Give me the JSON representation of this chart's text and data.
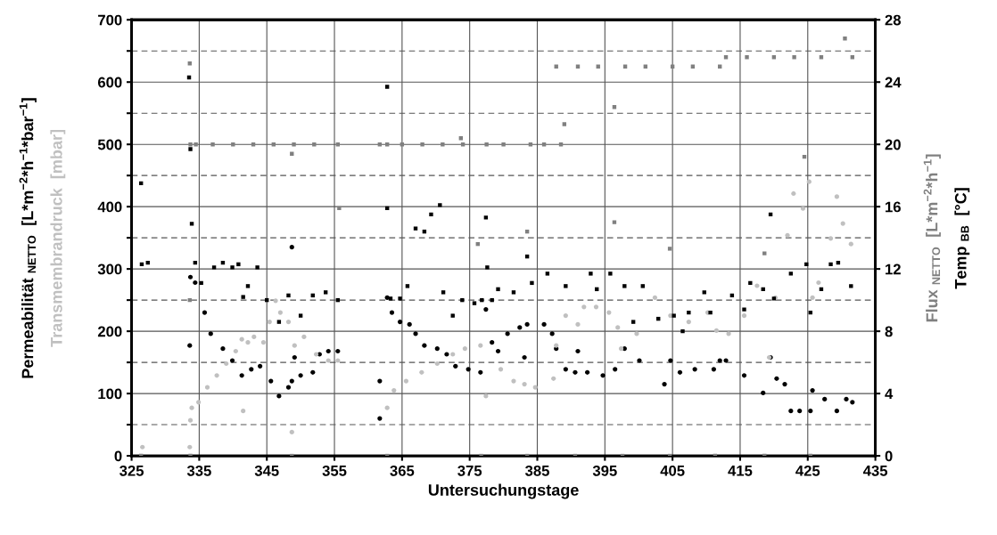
{
  "chart_data": {
    "type": "scatter",
    "xlabel": "Untersuchungstage",
    "ylabel": [
      "Permeabilität $_{NETTO}$  [L*m$^{−2}$*h$^{−1}$*bar$^{−1}$]",
      "Transmembrandruck  [mbar]"
    ],
    "y2label": [
      "Flux $_{NETTO}$  [L*m$^{−2}$*h$^{−1}$]",
      "Temp $_{BB}$  [°C]"
    ],
    "xlim": [
      325,
      435
    ],
    "xticks": [
      325,
      335,
      345,
      355,
      365,
      375,
      385,
      395,
      405,
      415,
      425,
      435
    ],
    "ylim": [
      0,
      700
    ],
    "yticks": [
      0,
      {
        "value": 50,
        "label": null
      },
      100,
      {
        "value": 150,
        "label": null
      },
      200,
      {
        "value": 250,
        "label": null
      },
      300,
      {
        "value": 350,
        "label": null
      },
      400,
      {
        "value": 450,
        "label": null
      },
      500,
      {
        "value": 550,
        "label": null
      },
      600,
      {
        "value": 650,
        "label": null
      },
      700
    ],
    "y2lim": [
      0,
      28
    ],
    "y2ticks": [
      0,
      4,
      8,
      12,
      16,
      20,
      24,
      28
    ],
    "grid": true,
    "legend": false,
    "series": [
      {
        "color": "#000000",
        "marker": "circle",
        "x": [
          333.6,
          333.7,
          334.4,
          335.8,
          336.7,
          338.5,
          339.9,
          341.3,
          342.7,
          344.0,
          345.6,
          346.8,
          348.2,
          348.7,
          348.7,
          349.1,
          350.0,
          351.8,
          352.8,
          354.1,
          355.5,
          361.7,
          361.7,
          362.8,
          363.5,
          364.7,
          366.1,
          367.0,
          368.3,
          370.2,
          371.6,
          372.9,
          374.8,
          376.6,
          377.4,
          378.3,
          379.2,
          380.6,
          382.4,
          383.1,
          383.5,
          386.0,
          387.2,
          387.8,
          389.2,
          390.6,
          391.0,
          392.4,
          394.7,
          396.5,
          397.9,
          400.1,
          403.8,
          404.7,
          406.1,
          408.3,
          411.1,
          412.0,
          412.9,
          415.6,
          418.4,
          419.5,
          420.4,
          421.6,
          422.5,
          423.8,
          425.4,
          425.7,
          427.5,
          429.3,
          430.7,
          431.6
        ],
        "values": [
          177,
          287,
          278,
          230,
          196,
          172,
          153,
          129,
          139,
          144,
          120,
          96,
          110,
          120,
          335,
          158,
          129,
          134,
          163,
          168,
          168,
          60,
          120,
          254,
          230,
          215,
          211,
          196,
          177,
          172,
          163,
          144,
          139,
          134,
          235,
          182,
          168,
          196,
          206,
          158,
          211,
          211,
          196,
          172,
          139,
          134,
          168,
          134,
          129,
          139,
          172,
          153,
          115,
          153,
          134,
          139,
          139,
          153,
          153,
          129,
          101,
          158,
          124,
          115,
          72,
          72,
          72,
          105,
          91,
          72,
          91,
          86
        ]
      },
      {
        "color": "#c0c0c0",
        "marker": "circle",
        "x": [
          326.6,
          333.6,
          333.7,
          333.9,
          334.9,
          336.2,
          337.6,
          339.0,
          340.4,
          341.3,
          341.5,
          342.2,
          343.1,
          344.5,
          345.4,
          346.3,
          347.0,
          348.2,
          348.7,
          349.1,
          350.5,
          352.3,
          354.1,
          355.5,
          362.8,
          363.8,
          365.6,
          367.9,
          370.2,
          372.5,
          374.3,
          376.6,
          377.4,
          379.6,
          381.5,
          383.1,
          384.7,
          387.4,
          387.8,
          389.2,
          391.0,
          391.9,
          393.7,
          395.6,
          396.9,
          397.4,
          399.7,
          402.4,
          404.7,
          407.4,
          410.2,
          411.5,
          413.3,
          415.6,
          417.5,
          419.3,
          420.2,
          422.0,
          422.9,
          424.3,
          425.2,
          425.7,
          426.6,
          428.4,
          429.3,
          430.2,
          431.4
        ],
        "values": [
          14,
          14,
          57,
          77,
          86,
          110,
          129,
          148,
          168,
          187,
          72,
          182,
          191,
          182,
          215,
          249,
          230,
          215,
          38,
          177,
          191,
          163,
          153,
          153,
          77,
          105,
          120,
          134,
          148,
          163,
          172,
          177,
          96,
          139,
          120,
          115,
          110,
          124,
          177,
          225,
          211,
          239,
          239,
          230,
          206,
          172,
          196,
          254,
          225,
          215,
          230,
          201,
          196,
          225,
          273,
          158,
          254,
          354,
          421,
          397,
          440,
          254,
          278,
          349,
          416,
          373,
          340
        ]
      },
      {
        "color": "#808080",
        "marker": "square",
        "axis": "y2",
        "x": [
          326.4,
          333.6,
          333.6,
          333.7,
          333.7,
          334.5,
          337,
          340,
          343,
          346,
          348.7,
          348.7,
          349,
          352,
          355.5,
          355.7,
          361.7,
          362.8,
          362.8,
          365,
          368,
          371,
          373.7,
          374,
          376.2,
          376.7,
          377.5,
          380,
          383.5,
          383.5,
          384,
          386,
          388.5,
          387.8,
          389.0,
          390.6,
          391,
          394,
          396.4,
          396.4,
          397.6,
          398,
          401,
          404.6,
          404.6,
          405,
          408,
          411.3,
          412,
          412.9,
          416,
          418.6,
          418.6,
          420,
          423,
          424.5,
          425.4,
          427,
          430.5,
          431.6
        ],
        "values": [
          0,
          25.2,
          10.0,
          20.0,
          0,
          20.0,
          20.0,
          20.0,
          20.0,
          20.0,
          19.4,
          0,
          20.0,
          20.0,
          20.0,
          15.9,
          20.0,
          20.0,
          0,
          20.0,
          20.0,
          20.0,
          20.4,
          20.0,
          13.6,
          0,
          20.0,
          20.0,
          14.4,
          0,
          20.0,
          20.0,
          20.0,
          25.0,
          21.3,
          0,
          25.0,
          25.0,
          22.4,
          15.0,
          0,
          25.0,
          25.0,
          13.3,
          0,
          25.0,
          25.0,
          0,
          25.0,
          25.6,
          25.6,
          13.0,
          0,
          25.6,
          25.6,
          19.2,
          0,
          25.6,
          26.8,
          25.6
        ]
      },
      {
        "color": "#000000",
        "marker": "square",
        "axis": "y2",
        "x": [
          326.4,
          326.5,
          327.4,
          333.5,
          333.7,
          333.9,
          334.4,
          335.3,
          337.2,
          338.5,
          339.9,
          340.8,
          341.5,
          342.2,
          343.6,
          345.0,
          346.8,
          348.2,
          350.0,
          351.8,
          353.7,
          355.5,
          362.8,
          362.8,
          363.3,
          364.7,
          365.8,
          367.0,
          368.3,
          369.3,
          370.6,
          371.1,
          372.5,
          373.9,
          375.7,
          376.8,
          377.4,
          377.6,
          378.3,
          379.2,
          381.5,
          383.5,
          384.2,
          386.5,
          389.2,
          392.9,
          393.8,
          395.8,
          397.9,
          399.2,
          400.6,
          402.9,
          405.2,
          406.5,
          407.4,
          409.7,
          410.6,
          413.8,
          415.6,
          416.5,
          418.4,
          419.5,
          420.0,
          422.5,
          424.8,
          425.4,
          427.0,
          428.4,
          429.5,
          431.4
        ],
        "values": [
          17.5,
          12.3,
          12.4,
          24.3,
          19.7,
          14.9,
          12.4,
          11.1,
          12.1,
          12.4,
          12.1,
          12.3,
          10.2,
          10.9,
          12.1,
          10.0,
          8.6,
          10.3,
          9.0,
          10.3,
          10.5,
          10.0,
          23.7,
          15.9,
          10.1,
          10.1,
          10.9,
          14.6,
          14.4,
          15.5,
          16.1,
          10.5,
          9.0,
          10.0,
          9.8,
          10.0,
          15.3,
          12.1,
          10.0,
          10.7,
          10.5,
          12.8,
          11.1,
          11.7,
          10.9,
          11.7,
          10.7,
          11.7,
          10.9,
          8.6,
          10.9,
          8.8,
          9.0,
          8.0,
          9.2,
          10.5,
          9.2,
          10.3,
          9.4,
          11.1,
          10.7,
          15.5,
          10.1,
          11.7,
          12.3,
          9.2,
          10.7,
          12.3,
          12.4,
          10.9
        ]
      }
    ]
  }
}
